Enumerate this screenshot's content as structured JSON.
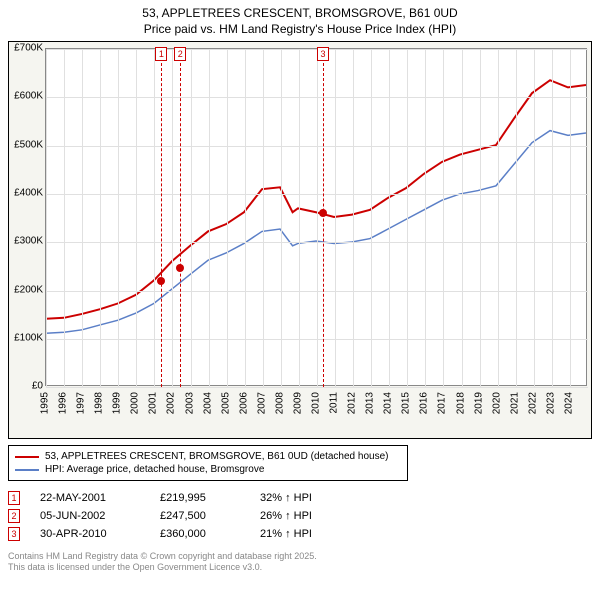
{
  "title": {
    "line1": "53, APPLETREES CRESCENT, BROMSGROVE, B61 0UD",
    "line2": "Price paid vs. HM Land Registry's House Price Index (HPI)"
  },
  "chart": {
    "type": "line",
    "background_color": "#f5f5f0",
    "plot_background": "#ffffff",
    "grid_color": "#e0e0e0",
    "border_color": "#888888",
    "xlim": [
      1995,
      2025
    ],
    "ylim": [
      0,
      700000
    ],
    "ytick_step": 100000,
    "yticks": [
      "£0",
      "£100K",
      "£200K",
      "£300K",
      "£400K",
      "£500K",
      "£600K",
      "£700K"
    ],
    "xticks": [
      "1995",
      "1996",
      "1997",
      "1998",
      "1999",
      "2000",
      "2001",
      "2002",
      "2003",
      "2004",
      "2005",
      "2006",
      "2007",
      "2008",
      "2009",
      "2010",
      "2011",
      "2012",
      "2013",
      "2014",
      "2015",
      "2016",
      "2017",
      "2018",
      "2019",
      "2020",
      "2021",
      "2022",
      "2023",
      "2024"
    ],
    "series": [
      {
        "name": "53, APPLETREES CRESCENT, BROMSGROVE, B61 0UD (detached house)",
        "color": "#cc0000",
        "line_width": 2,
        "data": [
          [
            1995,
            138000
          ],
          [
            1996,
            140000
          ],
          [
            1997,
            148000
          ],
          [
            1998,
            158000
          ],
          [
            1999,
            170000
          ],
          [
            2000,
            188000
          ],
          [
            2001,
            218000
          ],
          [
            2002,
            258000
          ],
          [
            2003,
            290000
          ],
          [
            2004,
            320000
          ],
          [
            2005,
            335000
          ],
          [
            2006,
            360000
          ],
          [
            2007,
            408000
          ],
          [
            2008,
            412000
          ],
          [
            2008.7,
            360000
          ],
          [
            2009,
            368000
          ],
          [
            2010,
            360000
          ],
          [
            2011,
            350000
          ],
          [
            2012,
            355000
          ],
          [
            2013,
            365000
          ],
          [
            2014,
            390000
          ],
          [
            2015,
            410000
          ],
          [
            2016,
            440000
          ],
          [
            2017,
            465000
          ],
          [
            2018,
            480000
          ],
          [
            2019,
            490000
          ],
          [
            2020,
            500000
          ],
          [
            2021,
            555000
          ],
          [
            2022,
            608000
          ],
          [
            2023,
            635000
          ],
          [
            2024,
            620000
          ],
          [
            2025,
            625000
          ]
        ]
      },
      {
        "name": "HPI: Average price, detached house, Bromsgrove",
        "color": "#5b7fc7",
        "line_width": 1.5,
        "data": [
          [
            1995,
            108000
          ],
          [
            1996,
            110000
          ],
          [
            1997,
            115000
          ],
          [
            1998,
            125000
          ],
          [
            1999,
            135000
          ],
          [
            2000,
            150000
          ],
          [
            2001,
            170000
          ],
          [
            2002,
            200000
          ],
          [
            2003,
            230000
          ],
          [
            2004,
            260000
          ],
          [
            2005,
            275000
          ],
          [
            2006,
            295000
          ],
          [
            2007,
            320000
          ],
          [
            2008,
            325000
          ],
          [
            2008.7,
            290000
          ],
          [
            2009,
            295000
          ],
          [
            2010,
            300000
          ],
          [
            2011,
            295000
          ],
          [
            2012,
            298000
          ],
          [
            2013,
            305000
          ],
          [
            2014,
            325000
          ],
          [
            2015,
            345000
          ],
          [
            2016,
            365000
          ],
          [
            2017,
            385000
          ],
          [
            2018,
            398000
          ],
          [
            2019,
            405000
          ],
          [
            2020,
            415000
          ],
          [
            2021,
            460000
          ],
          [
            2022,
            505000
          ],
          [
            2023,
            530000
          ],
          [
            2024,
            520000
          ],
          [
            2025,
            525000
          ]
        ]
      }
    ],
    "sale_markers": [
      {
        "num": "1",
        "x": 2001.39,
        "price": 219995
      },
      {
        "num": "2",
        "x": 2002.43,
        "price": 247500
      },
      {
        "num": "3",
        "x": 2010.33,
        "price": 360000
      }
    ]
  },
  "legend": {
    "items": [
      {
        "label": "53, APPLETREES CRESCENT, BROMSGROVE, B61 0UD (detached house)",
        "color": "#cc0000"
      },
      {
        "label": "HPI: Average price, detached house, Bromsgrove",
        "color": "#5b7fc7"
      }
    ]
  },
  "sales": [
    {
      "num": "1",
      "date": "22-MAY-2001",
      "price": "£219,995",
      "diff": "32% ↑ HPI"
    },
    {
      "num": "2",
      "date": "05-JUN-2002",
      "price": "£247,500",
      "diff": "26% ↑ HPI"
    },
    {
      "num": "3",
      "date": "30-APR-2010",
      "price": "£360,000",
      "diff": "21% ↑ HPI"
    }
  ],
  "footnote": {
    "line1": "Contains HM Land Registry data © Crown copyright and database right 2025.",
    "line2": "This data is licensed under the Open Government Licence v3.0."
  }
}
